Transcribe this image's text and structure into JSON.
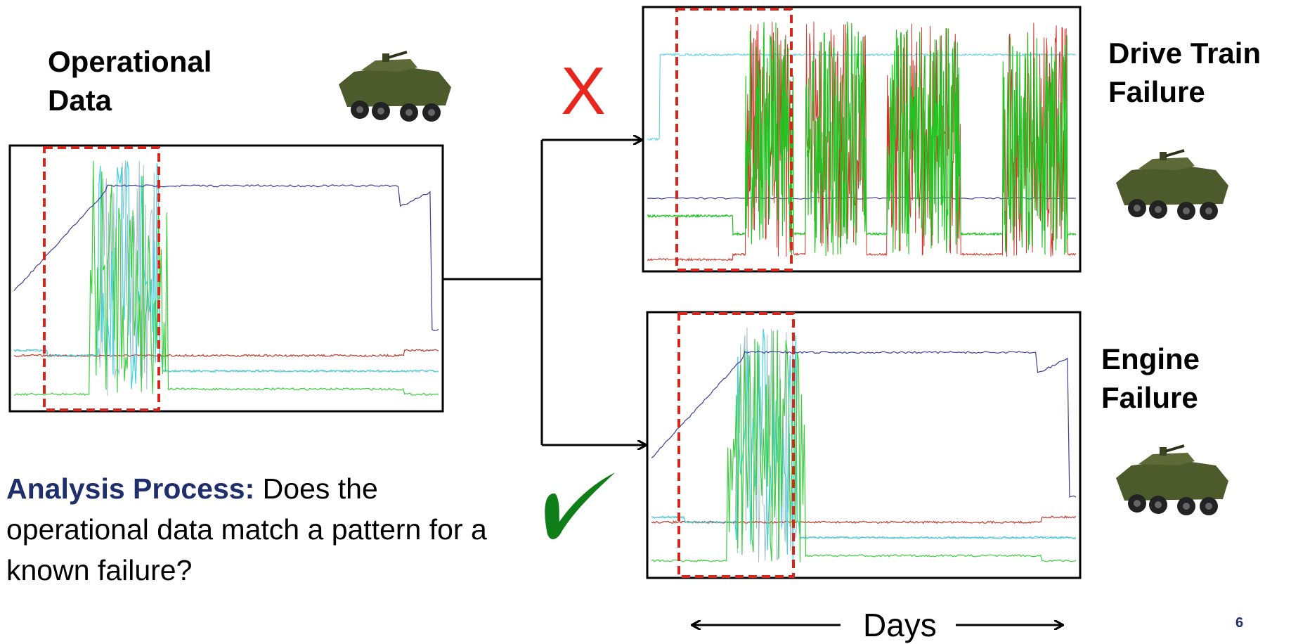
{
  "left_panel": {
    "title": "Operational Data"
  },
  "matches": [
    {
      "label": "Drive Train Failure",
      "verdict": "X"
    },
    {
      "label": "Engine Failure"
    }
  ],
  "analysis": {
    "lead": "Analysis Process:",
    "question": "Does the operational data match a pattern for a known failure?"
  },
  "axis_label": "Days",
  "page_number": "6"
}
